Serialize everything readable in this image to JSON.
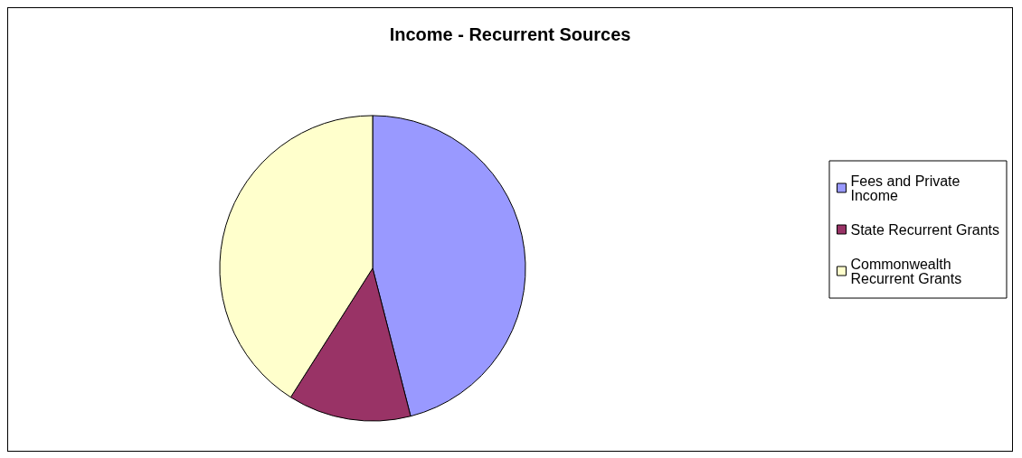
{
  "chart_data": {
    "type": "pie",
    "title": "Income - Recurrent Sources",
    "categories": [
      "Fees and Private Income",
      "State Recurrent Grants",
      "Commonwealth Recurrent Grants"
    ],
    "values": [
      46,
      13,
      41
    ],
    "colors": [
      "#9999ff",
      "#993366",
      "#ffffcc"
    ],
    "legend": "right"
  }
}
